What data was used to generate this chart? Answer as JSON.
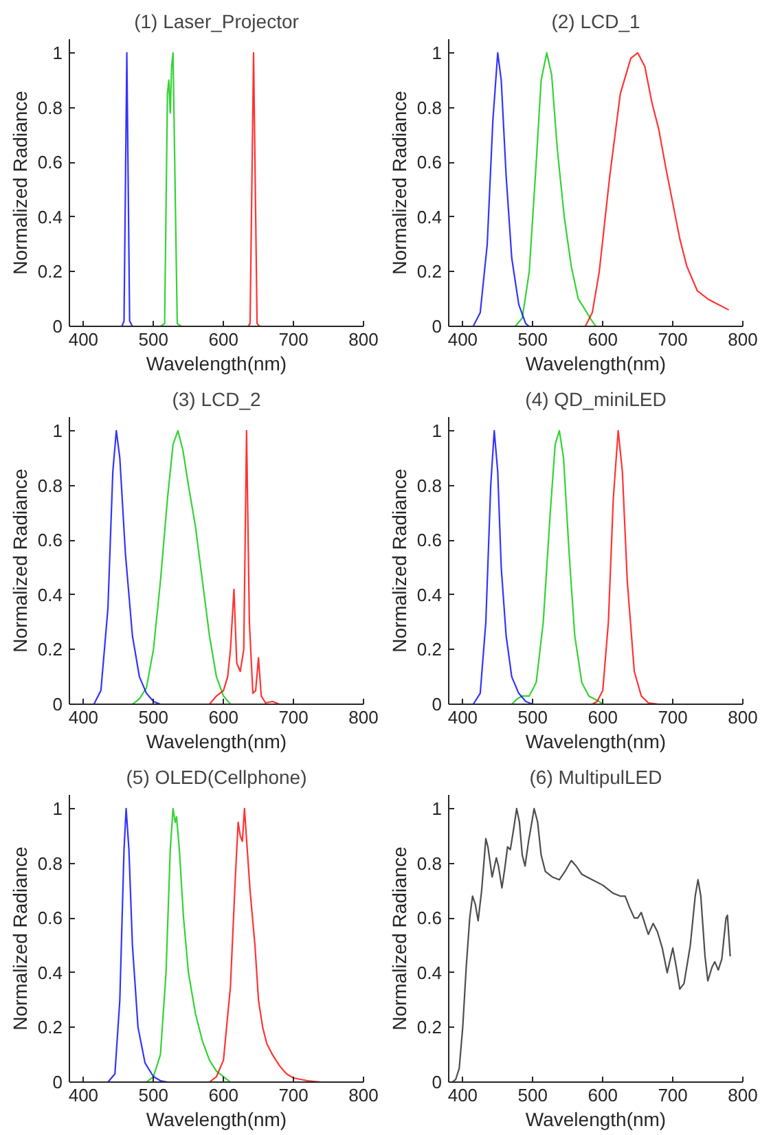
{
  "chart_data": [
    {
      "type": "line",
      "title": "(1) Laser_Projector",
      "xlabel": "Wavelength(nm)",
      "ylabel": "Normalized Radiance",
      "xlim": [
        380,
        800
      ],
      "ylim": [
        0,
        1.05
      ],
      "xticks": [
        400,
        500,
        600,
        700,
        800
      ],
      "yticks": [
        0,
        0.2,
        0.4,
        0.6,
        0.8,
        1
      ],
      "series": [
        {
          "color": "#00c800",
          "x": [
            510,
            516,
            520,
            522,
            524,
            526,
            528,
            531,
            534,
            540
          ],
          "values": [
            0,
            0.01,
            0.85,
            0.9,
            0.78,
            0.95,
            1.0,
            0.5,
            0.01,
            0
          ]
        },
        {
          "color": "#ff0000",
          "x": [
            635,
            638,
            643,
            648,
            652
          ],
          "values": [
            0,
            0.01,
            1.0,
            0.01,
            0
          ]
        },
        {
          "color": "#0000ff",
          "x": [
            455,
            458,
            462,
            466,
            470
          ],
          "values": [
            0,
            0.02,
            1.0,
            0.02,
            0
          ]
        }
      ]
    },
    {
      "type": "line",
      "title": "(2) LCD_1",
      "xlabel": "Wavelength(nm)",
      "ylabel": "Normalized Radiance",
      "xlim": [
        380,
        800
      ],
      "ylim": [
        0,
        1.05
      ],
      "xticks": [
        400,
        500,
        600,
        700,
        800
      ],
      "yticks": [
        0,
        0.2,
        0.4,
        0.6,
        0.8,
        1
      ],
      "series": [
        {
          "color": "#00c800",
          "x": [
            475,
            485,
            495,
            505,
            512,
            520,
            527,
            535,
            545,
            555,
            565,
            575,
            582,
            590
          ],
          "values": [
            0,
            0.03,
            0.2,
            0.6,
            0.9,
            1.0,
            0.92,
            0.65,
            0.4,
            0.22,
            0.1,
            0.06,
            0.03,
            0
          ]
        },
        {
          "color": "#ff0000",
          "x": [
            575,
            585,
            595,
            610,
            625,
            640,
            650,
            660,
            670,
            680,
            690,
            700,
            710,
            720,
            735,
            750,
            765,
            780
          ],
          "values": [
            0,
            0.05,
            0.2,
            0.55,
            0.85,
            0.98,
            1.0,
            0.95,
            0.82,
            0.72,
            0.58,
            0.45,
            0.32,
            0.22,
            0.13,
            0.1,
            0.08,
            0.06
          ]
        },
        {
          "color": "#0000ff",
          "x": [
            415,
            425,
            435,
            443,
            450,
            455,
            462,
            470,
            480,
            490,
            495
          ],
          "values": [
            0,
            0.05,
            0.3,
            0.75,
            1.0,
            0.9,
            0.55,
            0.25,
            0.08,
            0.01,
            0
          ]
        }
      ]
    },
    {
      "type": "line",
      "title": "(3) LCD_2",
      "xlabel": "Wavelength(nm)",
      "ylabel": "Normalized Radiance",
      "xlim": [
        380,
        800
      ],
      "ylim": [
        0,
        1.05
      ],
      "xticks": [
        400,
        500,
        600,
        700,
        800
      ],
      "yticks": [
        0,
        0.2,
        0.4,
        0.6,
        0.8,
        1
      ],
      "series": [
        {
          "color": "#00c800",
          "x": [
            470,
            480,
            490,
            500,
            510,
            520,
            528,
            535,
            542,
            550,
            560,
            570,
            580,
            590,
            600,
            610
          ],
          "values": [
            0,
            0.02,
            0.06,
            0.2,
            0.45,
            0.75,
            0.95,
            1.0,
            0.93,
            0.8,
            0.65,
            0.45,
            0.25,
            0.1,
            0.03,
            0
          ]
        },
        {
          "color": "#ff0000",
          "x": [
            580,
            590,
            600,
            606,
            610,
            615,
            619,
            624,
            629,
            633,
            637,
            642,
            646,
            650,
            654,
            660,
            670,
            680
          ],
          "values": [
            0,
            0.03,
            0.05,
            0.1,
            0.2,
            0.42,
            0.15,
            0.12,
            0.2,
            1.0,
            0.3,
            0.04,
            0.05,
            0.17,
            0.03,
            0.005,
            0.01,
            0
          ]
        },
        {
          "color": "#0000ff",
          "x": [
            415,
            425,
            435,
            442,
            447,
            452,
            460,
            470,
            480,
            490,
            500,
            510
          ],
          "values": [
            0,
            0.05,
            0.35,
            0.85,
            1.0,
            0.9,
            0.55,
            0.25,
            0.1,
            0.04,
            0.01,
            0
          ]
        }
      ]
    },
    {
      "type": "line",
      "title": "(4) QD_miniLED",
      "xlabel": "Wavelength(nm)",
      "ylabel": "Normalized Radiance",
      "xlim": [
        380,
        800
      ],
      "ylim": [
        0,
        1.05
      ],
      "xticks": [
        400,
        500,
        600,
        700,
        800
      ],
      "yticks": [
        0,
        0.2,
        0.4,
        0.6,
        0.8,
        1
      ],
      "series": [
        {
          "color": "#00c800",
          "x": [
            470,
            478,
            485,
            495,
            505,
            515,
            525,
            532,
            538,
            544,
            552,
            560,
            570,
            580,
            595,
            600
          ],
          "values": [
            0,
            0.02,
            0.03,
            0.03,
            0.08,
            0.3,
            0.7,
            0.95,
            1.0,
            0.9,
            0.55,
            0.25,
            0.08,
            0.03,
            0.01,
            0
          ]
        },
        {
          "color": "#ff0000",
          "x": [
            585,
            592,
            600,
            608,
            615,
            622,
            628,
            635,
            645,
            655,
            665,
            680
          ],
          "values": [
            0,
            0.01,
            0.05,
            0.3,
            0.75,
            1.0,
            0.85,
            0.45,
            0.12,
            0.03,
            0.005,
            0
          ]
        },
        {
          "color": "#0000ff",
          "x": [
            415,
            425,
            433,
            440,
            445,
            450,
            455,
            462,
            470,
            480,
            490,
            500
          ],
          "values": [
            0,
            0.04,
            0.3,
            0.8,
            1.0,
            0.85,
            0.5,
            0.25,
            0.1,
            0.04,
            0.01,
            0
          ]
        }
      ]
    },
    {
      "type": "line",
      "title": "(5) OLED(Cellphone)",
      "xlabel": "Wavelength(nm)",
      "ylabel": "Normalized Radiance",
      "xlim": [
        380,
        800
      ],
      "ylim": [
        0,
        1.05
      ],
      "xticks": [
        400,
        500,
        600,
        700,
        800
      ],
      "yticks": [
        0,
        0.2,
        0.4,
        0.6,
        0.8,
        1
      ],
      "series": [
        {
          "color": "#00c800",
          "x": [
            490,
            500,
            510,
            518,
            524,
            528,
            531,
            533,
            537,
            543,
            550,
            560,
            570,
            580,
            590,
            600,
            610
          ],
          "values": [
            0,
            0.02,
            0.1,
            0.4,
            0.85,
            1.0,
            0.95,
            0.97,
            0.85,
            0.6,
            0.4,
            0.25,
            0.15,
            0.08,
            0.04,
            0.02,
            0
          ]
        },
        {
          "color": "#ff0000",
          "x": [
            580,
            590,
            600,
            610,
            617,
            621,
            624,
            627,
            630,
            634,
            638,
            645,
            650,
            656,
            662,
            670,
            680,
            690,
            700,
            720,
            740
          ],
          "values": [
            0,
            0.02,
            0.08,
            0.35,
            0.75,
            0.95,
            0.9,
            0.88,
            1.0,
            0.85,
            0.7,
            0.5,
            0.3,
            0.2,
            0.14,
            0.1,
            0.06,
            0.03,
            0.015,
            0.005,
            0
          ]
        },
        {
          "color": "#0000ff",
          "x": [
            435,
            445,
            452,
            458,
            461,
            465,
            470,
            478,
            488,
            500,
            510,
            520
          ],
          "values": [
            0,
            0.03,
            0.3,
            0.85,
            1.0,
            0.85,
            0.5,
            0.2,
            0.07,
            0.02,
            0.005,
            0
          ]
        }
      ]
    },
    {
      "type": "line",
      "title": "(6) MultipulLED",
      "xlabel": "Wavelength(nm)",
      "ylabel": "Normalized Radiance",
      "xlim": [
        380,
        800
      ],
      "ylim": [
        0,
        1.05
      ],
      "xticks": [
        400,
        500,
        600,
        700,
        800
      ],
      "yticks": [
        0,
        0.2,
        0.4,
        0.6,
        0.8,
        1
      ],
      "series": [
        {
          "color": "#202020",
          "x": [
            385,
            390,
            395,
            400,
            405,
            410,
            414,
            418,
            422,
            427,
            433,
            436,
            442,
            448,
            451,
            456,
            460,
            464,
            468,
            473,
            477,
            481,
            485,
            489,
            494,
            502,
            507,
            512,
            518,
            528,
            538,
            546,
            555,
            562,
            570,
            585,
            600,
            615,
            625,
            632,
            638,
            645,
            650,
            655,
            660,
            665,
            672,
            678,
            685,
            692,
            700,
            705,
            710,
            716,
            725,
            732,
            736,
            740,
            746,
            750,
            756,
            760,
            765,
            770,
            776,
            778,
            782
          ],
          "values": [
            0,
            0.01,
            0.05,
            0.2,
            0.42,
            0.6,
            0.68,
            0.65,
            0.59,
            0.7,
            0.89,
            0.86,
            0.75,
            0.82,
            0.79,
            0.71,
            0.78,
            0.86,
            0.85,
            0.93,
            1.0,
            0.95,
            0.83,
            0.79,
            0.88,
            1.0,
            0.95,
            0.83,
            0.77,
            0.75,
            0.74,
            0.77,
            0.81,
            0.79,
            0.76,
            0.74,
            0.72,
            0.69,
            0.68,
            0.68,
            0.64,
            0.6,
            0.6,
            0.62,
            0.58,
            0.54,
            0.58,
            0.55,
            0.49,
            0.4,
            0.49,
            0.42,
            0.34,
            0.36,
            0.5,
            0.68,
            0.74,
            0.68,
            0.46,
            0.37,
            0.42,
            0.44,
            0.41,
            0.45,
            0.6,
            0.61,
            0.46
          ]
        }
      ]
    }
  ]
}
